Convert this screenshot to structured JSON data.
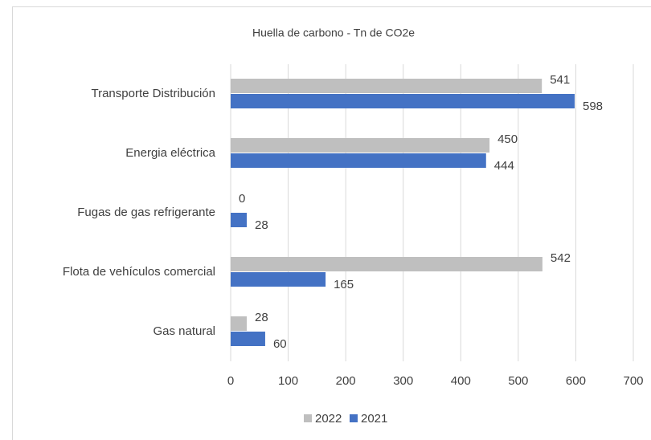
{
  "chart_data": {
    "type": "barh",
    "title": "Huella de carbono - Tn de CO2e",
    "categories": [
      "Transporte Distribución",
      "Energia eléctrica",
      "Fugas de gas refrigerante",
      "Flota de vehículos comercial",
      "Gas natural"
    ],
    "series": [
      {
        "name": "2022",
        "color": "#bfbfbf",
        "values": [
          541,
          450,
          0,
          542,
          28
        ]
      },
      {
        "name": "2021",
        "color": "#4472c4",
        "values": [
          598,
          444,
          28,
          165,
          60
        ]
      }
    ],
    "xlim": [
      0,
      700
    ],
    "xticks": [
      0,
      100,
      200,
      300,
      400,
      500,
      600,
      700
    ],
    "grid": true,
    "legend": "bottom"
  }
}
